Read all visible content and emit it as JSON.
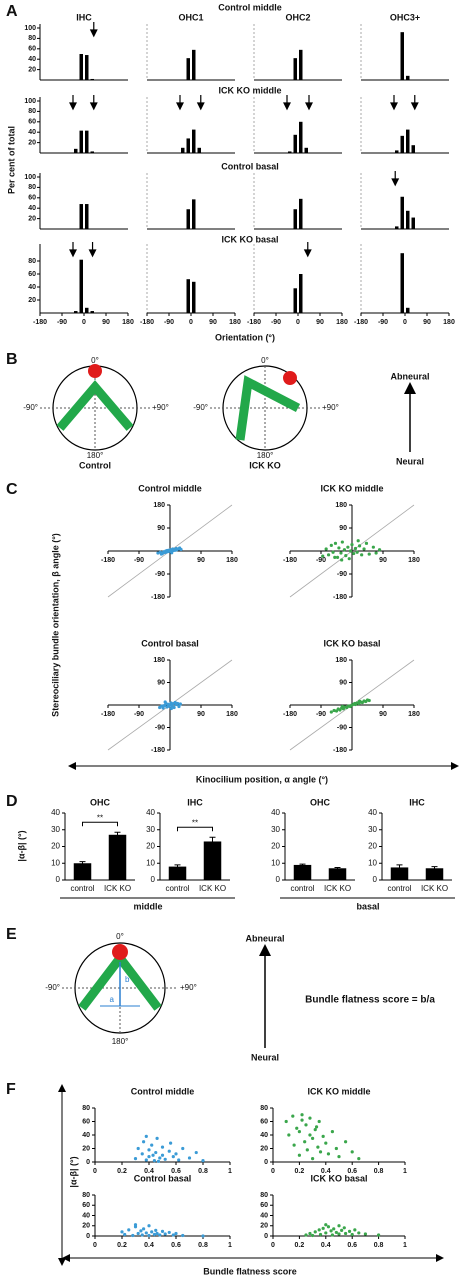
{
  "figure": {
    "panel_letters": [
      "A",
      "B",
      "C",
      "D",
      "E",
      "F"
    ],
    "panel_a": {
      "row_titles": [
        "Control middle",
        "ICK KO middle",
        "Control basal",
        "ICK KO basal"
      ],
      "column_titles": [
        "IHC",
        "OHC1",
        "OHC2",
        "OHC3+"
      ],
      "y_label": "Per cent of total",
      "x_label": "Orientation (°)"
    },
    "panel_b": {
      "angle_labels": [
        "0°",
        "-90°",
        "+90°",
        "180°"
      ],
      "diagram_labels": [
        "Control",
        "ICK KO"
      ],
      "arrow_labels": [
        "Abneural",
        "Neural"
      ]
    },
    "panel_c": {
      "y_label": "Stereociliary bundle orientation, β angle (°)",
      "x_label": "Kinocilium position, α angle (°)"
    },
    "panel_d": {
      "y_label": "|α-β| (°)",
      "group_labels": [
        "middle",
        "basal"
      ]
    },
    "panel_e": {
      "angle_labels": [
        "0°",
        "-90°",
        "+90°",
        "180°"
      ],
      "segment_labels": [
        "b",
        "a"
      ],
      "arrow_labels": [
        "Abneural",
        "Neural"
      ],
      "formula": "Bundle flatness score = b/a"
    },
    "panel_f": {
      "y_label": "|α-β| (°)",
      "x_label": "Bundle flatness score"
    }
  },
  "chart_data": [
    {
      "type": "histogram",
      "bins": [
        -45,
        -22.5,
        0,
        22.5,
        45
      ],
      "values": [
        0,
        50,
        48,
        2
      ],
      "color": "#000000",
      "xlim": [
        -180,
        180
      ],
      "ylim": [
        0,
        100
      ],
      "yticks": [
        20,
        40,
        60,
        80,
        100
      ],
      "arrows": [
        40
      ]
    },
    {
      "type": "histogram",
      "bins": [
        -45,
        -22.5,
        0,
        22.5,
        45
      ],
      "values": [
        0,
        42,
        58,
        0
      ],
      "color": "#000000",
      "xlim": [
        -180,
        180
      ],
      "ylim": [
        0,
        100
      ]
    },
    {
      "type": "histogram",
      "bins": [
        -45,
        -22.5,
        0,
        22.5,
        45
      ],
      "values": [
        0,
        42,
        58,
        0
      ],
      "color": "#000000",
      "xlim": [
        -180,
        180
      ],
      "ylim": [
        0,
        100
      ]
    },
    {
      "type": "histogram",
      "bins": [
        -45,
        -22.5,
        0,
        22.5,
        45
      ],
      "values": [
        0,
        92,
        8,
        0
      ],
      "color": "#000000",
      "xlim": [
        -180,
        180
      ],
      "ylim": [
        0,
        100
      ]
    },
    {
      "type": "histogram",
      "bins": [
        -45,
        -22.5,
        0,
        22.5,
        45
      ],
      "values": [
        8,
        43,
        43,
        3
      ],
      "color": "#000000",
      "xlim": [
        -180,
        180
      ],
      "ylim": [
        0,
        100
      ],
      "yticks": [
        20,
        40,
        60,
        80,
        100
      ],
      "arrows": [
        -45,
        40
      ]
    },
    {
      "type": "histogram",
      "bins": [
        -45,
        -22.5,
        0,
        22.5,
        45
      ],
      "values": [
        10,
        28,
        45,
        10
      ],
      "color": "#000000",
      "xlim": [
        -180,
        180
      ],
      "ylim": [
        0,
        100
      ],
      "arrows": [
        -45,
        40
      ]
    },
    {
      "type": "histogram",
      "bins": [
        -45,
        -22.5,
        0,
        22.5,
        45
      ],
      "values": [
        3,
        35,
        60,
        10
      ],
      "color": "#000000",
      "xlim": [
        -180,
        180
      ],
      "ylim": [
        0,
        100
      ],
      "arrows": [
        -45,
        45
      ]
    },
    {
      "type": "histogram",
      "bins": [
        -45,
        -22.5,
        0,
        22.5,
        45
      ],
      "values": [
        5,
        33,
        45,
        15
      ],
      "color": "#000000",
      "xlim": [
        -180,
        180
      ],
      "ylim": [
        0,
        100
      ],
      "arrows": [
        -45,
        40
      ]
    },
    {
      "type": "histogram",
      "bins": [
        -45,
        -22.5,
        0,
        22.5,
        45
      ],
      "values": [
        0,
        48,
        48,
        0
      ],
      "color": "#000000",
      "xlim": [
        -180,
        180
      ],
      "ylim": [
        0,
        100
      ],
      "yticks": [
        20,
        40,
        60,
        80,
        100
      ]
    },
    {
      "type": "histogram",
      "bins": [
        -45,
        -22.5,
        0,
        22.5,
        45
      ],
      "values": [
        0,
        38,
        57,
        0
      ],
      "color": "#000000",
      "xlim": [
        -180,
        180
      ],
      "ylim": [
        0,
        100
      ]
    },
    {
      "type": "histogram",
      "bins": [
        -45,
        -22.5,
        0,
        22.5,
        45
      ],
      "values": [
        0,
        38,
        58,
        0
      ],
      "color": "#000000",
      "xlim": [
        -180,
        180
      ],
      "ylim": [
        0,
        100
      ]
    },
    {
      "type": "histogram",
      "bins": [
        -45,
        -22.5,
        0,
        22.5,
        45
      ],
      "values": [
        5,
        62,
        35,
        22
      ],
      "color": "#000000",
      "xlim": [
        -180,
        180
      ],
      "ylim": [
        0,
        100
      ],
      "arrows": [
        -40
      ]
    },
    {
      "type": "histogram",
      "bins": [
        -45,
        -22.5,
        0,
        22.5,
        45
      ],
      "values": [
        3,
        82,
        8,
        3
      ],
      "color": "#000000",
      "xlim": [
        -180,
        180
      ],
      "ylim": [
        0,
        100
      ],
      "yticks": [
        20,
        40,
        60,
        80
      ],
      "xticks": [
        -180,
        -90,
        0,
        90,
        180
      ],
      "arrows": [
        -45,
        35
      ]
    },
    {
      "type": "histogram",
      "bins": [
        -45,
        -22.5,
        0,
        22.5,
        45
      ],
      "values": [
        0,
        52,
        48,
        0
      ],
      "color": "#000000",
      "xlim": [
        -180,
        180
      ],
      "ylim": [
        0,
        100
      ],
      "xticks": [
        -180,
        -90,
        0,
        90,
        180
      ]
    },
    {
      "type": "histogram",
      "bins": [
        -45,
        -22.5,
        0,
        22.5,
        45
      ],
      "values": [
        0,
        38,
        60,
        0
      ],
      "color": "#000000",
      "xlim": [
        -180,
        180
      ],
      "ylim": [
        0,
        100
      ],
      "xticks": [
        -180,
        -90,
        0,
        90,
        180
      ],
      "arrows": [
        40
      ]
    },
    {
      "type": "histogram",
      "bins": [
        -45,
        -22.5,
        0,
        22.5,
        45
      ],
      "values": [
        0,
        92,
        8,
        0
      ],
      "color": "#000000",
      "xlim": [
        -180,
        180
      ],
      "ylim": [
        0,
        100
      ],
      "xticks": [
        -180,
        -90,
        0,
        90,
        180
      ]
    },
    {
      "type": "scatter",
      "title": "Control middle",
      "color": "#3b9bd6",
      "diagonal": true,
      "xlim": [
        -180,
        180
      ],
      "ylim": [
        -180,
        180
      ],
      "xticks": [
        -180,
        -90,
        90,
        180
      ],
      "yticks": [
        -180,
        -90,
        90,
        180
      ],
      "x": [
        -35,
        -28,
        -22,
        -18,
        -15,
        -12,
        -10,
        -8,
        -5,
        -3,
        0,
        2,
        4,
        6,
        8,
        10,
        12,
        15,
        18,
        20,
        24,
        28,
        32,
        -25,
        5
      ],
      "y": [
        -8,
        -5,
        -10,
        -3,
        -6,
        0,
        -4,
        2,
        -2,
        3,
        0,
        5,
        -3,
        4,
        8,
        2,
        6,
        3,
        10,
        5,
        8,
        12,
        6,
        -12,
        -7
      ]
    },
    {
      "type": "scatter",
      "title": "ICK KO middle",
      "color": "#3aa64b",
      "diagonal": true,
      "xlim": [
        -180,
        180
      ],
      "ylim": [
        -180,
        180
      ],
      "xticks": [
        -180,
        -90,
        90,
        180
      ],
      "yticks": [
        -180,
        -90,
        90,
        180
      ],
      "x": [
        -85,
        -75,
        -68,
        -60,
        -55,
        -48,
        -42,
        -38,
        -32,
        -28,
        -22,
        -18,
        -12,
        -8,
        -4,
        0,
        5,
        10,
        15,
        22,
        28,
        35,
        42,
        50,
        62,
        70,
        80,
        -30,
        18,
        -50
      ],
      "y": [
        -20,
        8,
        -15,
        22,
        -5,
        30,
        -25,
        12,
        -8,
        35,
        5,
        -18,
        15,
        -30,
        0,
        25,
        -10,
        10,
        -5,
        20,
        -15,
        8,
        30,
        -12,
        15,
        -8,
        5,
        -35,
        40,
        -25
      ]
    },
    {
      "type": "scatter",
      "title": "Control basal",
      "color": "#3b9bd6",
      "diagonal": true,
      "xlim": [
        -180,
        180
      ],
      "ylim": [
        -180,
        180
      ],
      "xticks": [
        -180,
        -90,
        90,
        180
      ],
      "yticks": [
        -180,
        -90,
        90,
        180
      ],
      "x": [
        -30,
        -24,
        -20,
        -16,
        -12,
        -9,
        -6,
        -3,
        0,
        3,
        6,
        9,
        12,
        15,
        18,
        22,
        26,
        30,
        -14,
        4
      ],
      "y": [
        -10,
        -4,
        -12,
        -2,
        6,
        -8,
        3,
        -5,
        0,
        8,
        -3,
        5,
        -10,
        10,
        2,
        6,
        -6,
        4,
        12,
        -14
      ]
    },
    {
      "type": "scatter",
      "title": "ICK KO basal",
      "color": "#3aa64b",
      "diagonal": true,
      "xlim": [
        -180,
        180
      ],
      "ylim": [
        -180,
        180
      ],
      "xticks": [
        -180,
        -90,
        90,
        180
      ],
      "yticks": [
        -180,
        -90,
        90,
        180
      ],
      "x": [
        -60,
        -52,
        -45,
        -40,
        -35,
        -30,
        -25,
        -20,
        -15,
        -10,
        -5,
        0,
        5,
        10,
        15,
        20,
        25,
        30,
        35,
        40,
        45,
        50,
        -28,
        8,
        22
      ],
      "y": [
        -28,
        -22,
        -24,
        -16,
        -20,
        -12,
        -15,
        -8,
        -10,
        -4,
        -6,
        0,
        3,
        2,
        8,
        6,
        12,
        10,
        16,
        14,
        20,
        18,
        -6,
        6,
        15
      ]
    },
    {
      "type": "bar",
      "title": "OHC",
      "categories": [
        "control",
        "ICK KO"
      ],
      "values": [
        10,
        27
      ],
      "errors": [
        1,
        1.5
      ],
      "color": "#000000",
      "significance": "**",
      "ylim": [
        0,
        40
      ],
      "yticks": [
        0,
        10,
        20,
        30,
        40
      ]
    },
    {
      "type": "bar",
      "title": "IHC",
      "categories": [
        "control",
        "ICK KO"
      ],
      "values": [
        8,
        23
      ],
      "errors": [
        1,
        2.5
      ],
      "color": "#000000",
      "significance": "**",
      "ylim": [
        0,
        40
      ],
      "yticks": [
        0,
        10,
        20,
        30,
        40
      ]
    },
    {
      "type": "bar",
      "title": "OHC",
      "categories": [
        "control",
        "ICK KO"
      ],
      "values": [
        9,
        7
      ],
      "errors": [
        0.5,
        0.5
      ],
      "color": "#000000",
      "ylim": [
        0,
        40
      ],
      "yticks": [
        0,
        10,
        20,
        30,
        40
      ]
    },
    {
      "type": "bar",
      "title": "IHC",
      "categories": [
        "control",
        "ICK KO"
      ],
      "values": [
        7.5,
        7
      ],
      "errors": [
        1.5,
        1
      ],
      "color": "#000000",
      "ylim": [
        0,
        40
      ],
      "yticks": [
        0,
        10,
        20,
        30,
        40
      ]
    },
    {
      "type": "scatter",
      "title": "Control middle",
      "color": "#3b9bd6",
      "xlim": [
        0,
        1
      ],
      "ylim": [
        0,
        80
      ],
      "xticks": [
        0,
        0.2,
        0.4,
        0.6,
        0.8,
        1
      ],
      "yticks": [
        0,
        20,
        40,
        60,
        80
      ],
      "x": [
        0.3,
        0.32,
        0.35,
        0.36,
        0.38,
        0.4,
        0.4,
        0.42,
        0.44,
        0.45,
        0.46,
        0.48,
        0.5,
        0.5,
        0.52,
        0.55,
        0.56,
        0.58,
        0.6,
        0.62,
        0.65,
        0.7,
        0.75,
        0.8,
        0.38,
        0.43,
        0.47
      ],
      "y": [
        5,
        20,
        12,
        30,
        3,
        8,
        18,
        25,
        2,
        14,
        35,
        6,
        10,
        22,
        4,
        16,
        28,
        8,
        12,
        3,
        20,
        6,
        14,
        2,
        38,
        10,
        1
      ]
    },
    {
      "type": "scatter",
      "title": "ICK KO middle",
      "color": "#3aa64b",
      "xlim": [
        0,
        1
      ],
      "ylim": [
        0,
        80
      ],
      "xticks": [
        0,
        0.2,
        0.4,
        0.6,
        0.8,
        1
      ],
      "yticks": [
        0,
        20,
        40,
        60,
        80
      ],
      "x": [
        0.1,
        0.12,
        0.15,
        0.16,
        0.18,
        0.2,
        0.2,
        0.22,
        0.24,
        0.25,
        0.26,
        0.28,
        0.3,
        0.3,
        0.32,
        0.34,
        0.35,
        0.36,
        0.38,
        0.4,
        0.42,
        0.45,
        0.48,
        0.5,
        0.55,
        0.6,
        0.65,
        0.22,
        0.28,
        0.33
      ],
      "y": [
        60,
        40,
        68,
        25,
        50,
        10,
        45,
        62,
        30,
        55,
        18,
        40,
        5,
        35,
        48,
        22,
        60,
        15,
        38,
        28,
        12,
        45,
        20,
        8,
        30,
        15,
        5,
        70,
        65,
        52
      ]
    },
    {
      "type": "scatter",
      "title": "Control basal",
      "color": "#3b9bd6",
      "xlim": [
        0,
        1
      ],
      "ylim": [
        0,
        80
      ],
      "xticks": [
        0,
        0.2,
        0.4,
        0.6,
        0.8,
        1
      ],
      "yticks": [
        0,
        20,
        40,
        60,
        80
      ],
      "x": [
        0.2,
        0.22,
        0.25,
        0.28,
        0.3,
        0.32,
        0.34,
        0.35,
        0.36,
        0.38,
        0.4,
        0.4,
        0.42,
        0.44,
        0.45,
        0.46,
        0.48,
        0.5,
        0.52,
        0.55,
        0.58,
        0.6,
        0.65,
        0.8,
        0.3
      ],
      "y": [
        8,
        3,
        12,
        1,
        18,
        5,
        10,
        2,
        14,
        6,
        20,
        1,
        8,
        3,
        11,
        5,
        2,
        9,
        4,
        7,
        2,
        5,
        1,
        0,
        22
      ]
    },
    {
      "type": "scatter",
      "title": "ICK KO basal",
      "color": "#3aa64b",
      "xlim": [
        0,
        1
      ],
      "ylim": [
        0,
        80
      ],
      "xticks": [
        0,
        0.2,
        0.4,
        0.6,
        0.8,
        1
      ],
      "yticks": [
        0,
        20,
        40,
        60,
        80
      ],
      "x": [
        0.25,
        0.28,
        0.3,
        0.32,
        0.35,
        0.36,
        0.38,
        0.4,
        0.42,
        0.44,
        0.45,
        0.46,
        0.48,
        0.5,
        0.5,
        0.52,
        0.54,
        0.55,
        0.58,
        0.6,
        0.62,
        0.65,
        0.7,
        0.8,
        0.4
      ],
      "y": [
        2,
        5,
        1,
        8,
        12,
        3,
        15,
        6,
        18,
        10,
        2,
        14,
        7,
        20,
        4,
        11,
        16,
        5,
        9,
        3,
        12,
        6,
        4,
        2,
        22
      ]
    }
  ]
}
